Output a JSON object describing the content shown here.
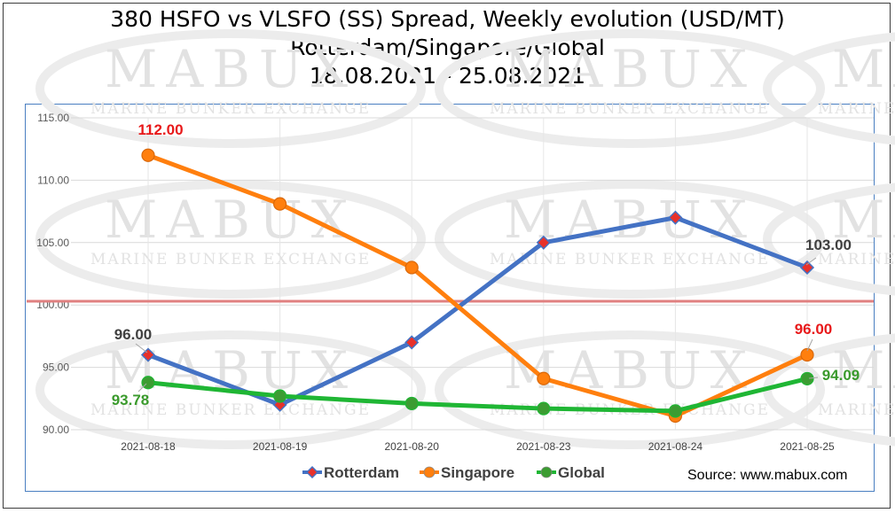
{
  "chart_data": {
    "type": "line",
    "title": "380 HSFO vs VLSFO (SS) Spread, Weekly evolution (USD/MT)",
    "subtitle": "Rotterdam/Singapore/Global",
    "subtitle2": "18.08.2021 - 25.08.2021",
    "categories": [
      "2021-08-18",
      "2021-08-19",
      "2021-08-20",
      "2021-08-23",
      "2021-08-24",
      "2021-08-25"
    ],
    "ylim": [
      90,
      115
    ],
    "yticks": [
      "115.00",
      "110.00",
      "105.00",
      "100.00",
      "95.00",
      "90.00"
    ],
    "grid": true,
    "legend_position": "bottom",
    "reference_line": 100.3,
    "series": [
      {
        "name": "Rotterdam",
        "values": [
          96,
          92,
          97,
          105,
          107,
          103
        ],
        "color": "#4472c4",
        "marker_color": "#e8312a",
        "marker": "diamond"
      },
      {
        "name": "Singapore",
        "values": [
          112,
          108.1,
          103,
          94.1,
          91.1,
          96
        ],
        "color": "#ff7f0e",
        "marker": "circle"
      },
      {
        "name": "Global",
        "values": [
          93.78,
          92.7,
          92.1,
          91.7,
          91.5,
          94.09
        ],
        "color": "#1fb634",
        "marker_color": "#3c9c32",
        "marker": "circle"
      }
    ],
    "data_labels": [
      {
        "text": "112.00",
        "color": "#e8191a"
      },
      {
        "text": "96.00",
        "color": "#404040"
      },
      {
        "text": "93.78",
        "color": "#3a9a2c"
      },
      {
        "text": "103.00",
        "color": "#404040"
      },
      {
        "text": "96.00",
        "color": "#e8191a"
      },
      {
        "text": "94.09",
        "color": "#3a9a2c"
      }
    ]
  },
  "watermark": {
    "brand": "MABUX",
    "tagline": "MARINE BUNKER EXCHANGE"
  },
  "source": "Source: www.mabux.com"
}
